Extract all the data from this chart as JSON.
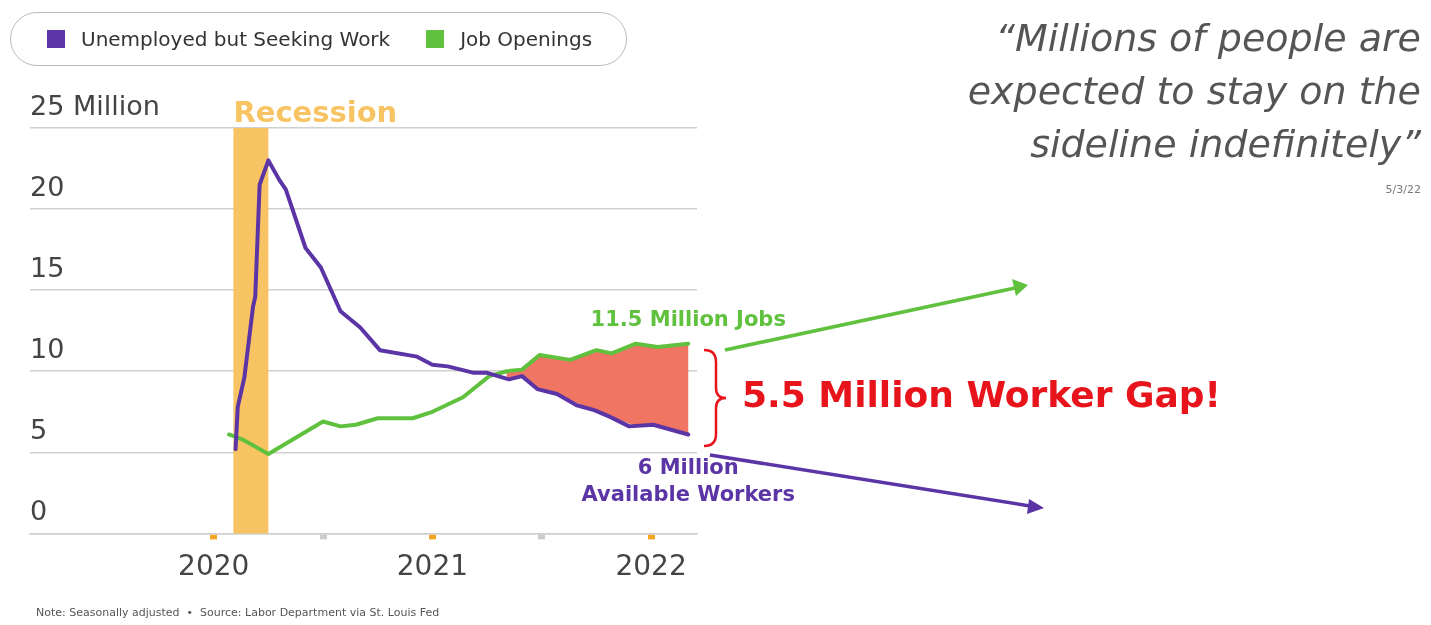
{
  "chart_data": {
    "type": "line",
    "title": "“Millions of people are expected to stay on the sideline indefinitely”",
    "series": [
      {
        "name": "Unemployed but Seeking Work",
        "color": "#5b35a6",
        "x": [
          2020.1,
          2020.11,
          2020.14,
          2020.18,
          2020.19,
          2020.21,
          2020.25,
          2020.3,
          2020.33,
          2020.42,
          2020.49,
          2020.58,
          2020.67,
          2020.76,
          2020.93,
          2021.0,
          2021.07,
          2021.13,
          2021.19,
          2021.25,
          2021.35,
          2021.41,
          2021.48,
          2021.57,
          2021.66,
          2021.74,
          2021.81,
          2021.9,
          2022.01,
          2022.17
        ],
        "values": [
          5.2,
          7.8,
          9.6,
          14.0,
          14.6,
          21.5,
          23.0,
          21.8,
          21.2,
          17.6,
          16.4,
          13.7,
          12.7,
          11.3,
          10.9,
          10.4,
          10.3,
          10.1,
          9.9,
          9.9,
          9.5,
          9.7,
          8.9,
          8.6,
          7.9,
          7.6,
          7.2,
          6.6,
          6.7,
          6.1
        ]
      },
      {
        "name": "Job Openings",
        "color": "#5fc13e",
        "x": [
          2020.07,
          2020.13,
          2020.25,
          2020.5,
          2020.58,
          2020.65,
          2020.75,
          2020.91,
          2021.0,
          2021.14,
          2021.26,
          2021.34,
          2021.41,
          2021.49,
          2021.63,
          2021.75,
          2021.82,
          2021.93,
          2022.03,
          2022.17
        ],
        "values": [
          6.1,
          5.8,
          4.9,
          6.9,
          6.6,
          6.7,
          7.1,
          7.1,
          7.5,
          8.4,
          9.7,
          10.0,
          10.1,
          11.0,
          10.7,
          11.3,
          11.1,
          11.7,
          11.5,
          11.7
        ],
        "lower": [
          null,
          null,
          null,
          null,
          null,
          null,
          null,
          null,
          null,
          null,
          null,
          9.5,
          9.7,
          8.9,
          8.2,
          7.6,
          7.2,
          6.6,
          6.7,
          6.1
        ],
        "upper": [
          null,
          null,
          null,
          null,
          null,
          null,
          null,
          null,
          null,
          null,
          null,
          10.0,
          10.1,
          11.0,
          10.7,
          11.3,
          11.1,
          11.7,
          11.5,
          11.7
        ]
      }
    ],
    "xlim": [
      2019.16,
      2022.21
    ],
    "xticks": [
      2020,
      {
        "value": 2020.5,
        "label": null
      },
      2021,
      {
        "value": 2021.5,
        "label": null
      },
      2022
    ],
    "ylim": [
      0,
      25
    ],
    "yticks": [
      0,
      5,
      10,
      15,
      20,
      {
        "value": 25,
        "label": "25 Million"
      }
    ],
    "bands": [
      {
        "axis": "x",
        "from": 2020.09,
        "to": 2020.25,
        "label": "Recession",
        "color": "#f8c463"
      }
    ],
    "annotations": [
      {
        "text": "11.5 Million Jobs",
        "x": 2022.17,
        "y": 11.7
      },
      {
        "text": "6 Million\nAvailable Workers",
        "x": 2022.17,
        "y": 6.1
      },
      "5.5 Million Worker Gap!",
      "5/3/22",
      "Note: Seasonally adjusted  •  Source: Labor Department via St. Louis Fed"
    ],
    "grid": "y",
    "legend": "top left",
    "marker": "none",
    "line_style": "solid"
  }
}
